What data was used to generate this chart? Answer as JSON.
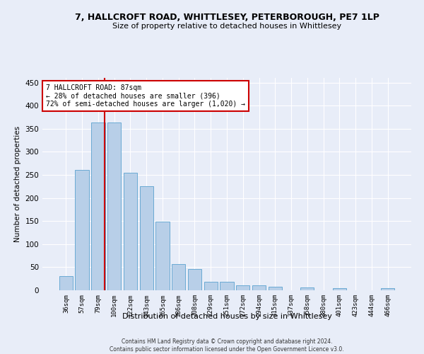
{
  "title": "7, HALLCROFT ROAD, WHITTLESEY, PETERBOROUGH, PE7 1LP",
  "subtitle": "Size of property relative to detached houses in Whittlesey",
  "xlabel": "Distribution of detached houses by size in Whittlesey",
  "ylabel": "Number of detached properties",
  "categories": [
    "36sqm",
    "57sqm",
    "79sqm",
    "100sqm",
    "122sqm",
    "143sqm",
    "165sqm",
    "186sqm",
    "208sqm",
    "229sqm",
    "251sqm",
    "272sqm",
    "294sqm",
    "315sqm",
    "337sqm",
    "358sqm",
    "380sqm",
    "401sqm",
    "423sqm",
    "444sqm",
    "466sqm"
  ],
  "values": [
    31,
    260,
    363,
    363,
    255,
    225,
    148,
    57,
    46,
    18,
    18,
    10,
    10,
    7,
    0,
    6,
    0,
    4,
    0,
    0,
    4
  ],
  "bar_color": "#b8cfe8",
  "bar_edge_color": "#6aaad4",
  "vline_color": "#cc0000",
  "annotation_box_color": "#ffffff",
  "annotation_box_edge_color": "#cc0000",
  "property_line_label": "7 HALLCROFT ROAD: 87sqm",
  "annotation_line1": "← 28% of detached houses are smaller (396)",
  "annotation_line2": "72% of semi-detached houses are larger (1,020) →",
  "ylim": [
    0,
    460
  ],
  "yticks": [
    0,
    50,
    100,
    150,
    200,
    250,
    300,
    350,
    400,
    450
  ],
  "background_color": "#e8edf8",
  "grid_color": "#ffffff",
  "footer_line1": "Contains HM Land Registry data © Crown copyright and database right 2024.",
  "footer_line2": "Contains public sector information licensed under the Open Government Licence v3.0."
}
